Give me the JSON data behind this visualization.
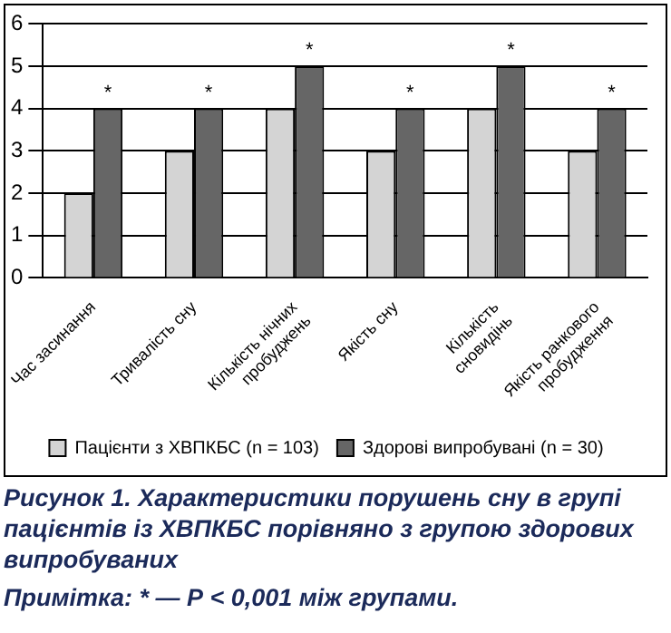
{
  "chart_data": {
    "type": "bar",
    "title": "Рисунок 1. Характеристики порушень сну в групі пацієнтів із ХВПКБС порівняно з групою здорових випробуваних",
    "annotations": [
      "Примітка: * — Р < 0,001 між групами."
    ],
    "categories": [
      "Час засинання",
      "Тривалість сну",
      "Кількість нічних пробуджень",
      "Якість сну",
      "Кількість сновидінь",
      "Якість ранкового пробудження"
    ],
    "series": [
      {
        "name": "Пацієнти з ХВПКБС (n = 103)",
        "color": "#d4d4d4",
        "values": [
          2,
          3,
          4,
          3,
          4,
          3
        ]
      },
      {
        "name": "Здорові випробувані (n = 30)",
        "color": "#666666",
        "values": [
          4,
          4,
          5,
          4,
          5,
          4
        ],
        "value_labels": [
          "*",
          "*",
          "*",
          "*",
          "*",
          "*"
        ]
      }
    ],
    "ylim": [
      0,
      6
    ],
    "yticks": [
      0,
      1,
      2,
      3,
      4,
      5,
      6
    ],
    "grid": "y",
    "legend": "bottom"
  }
}
